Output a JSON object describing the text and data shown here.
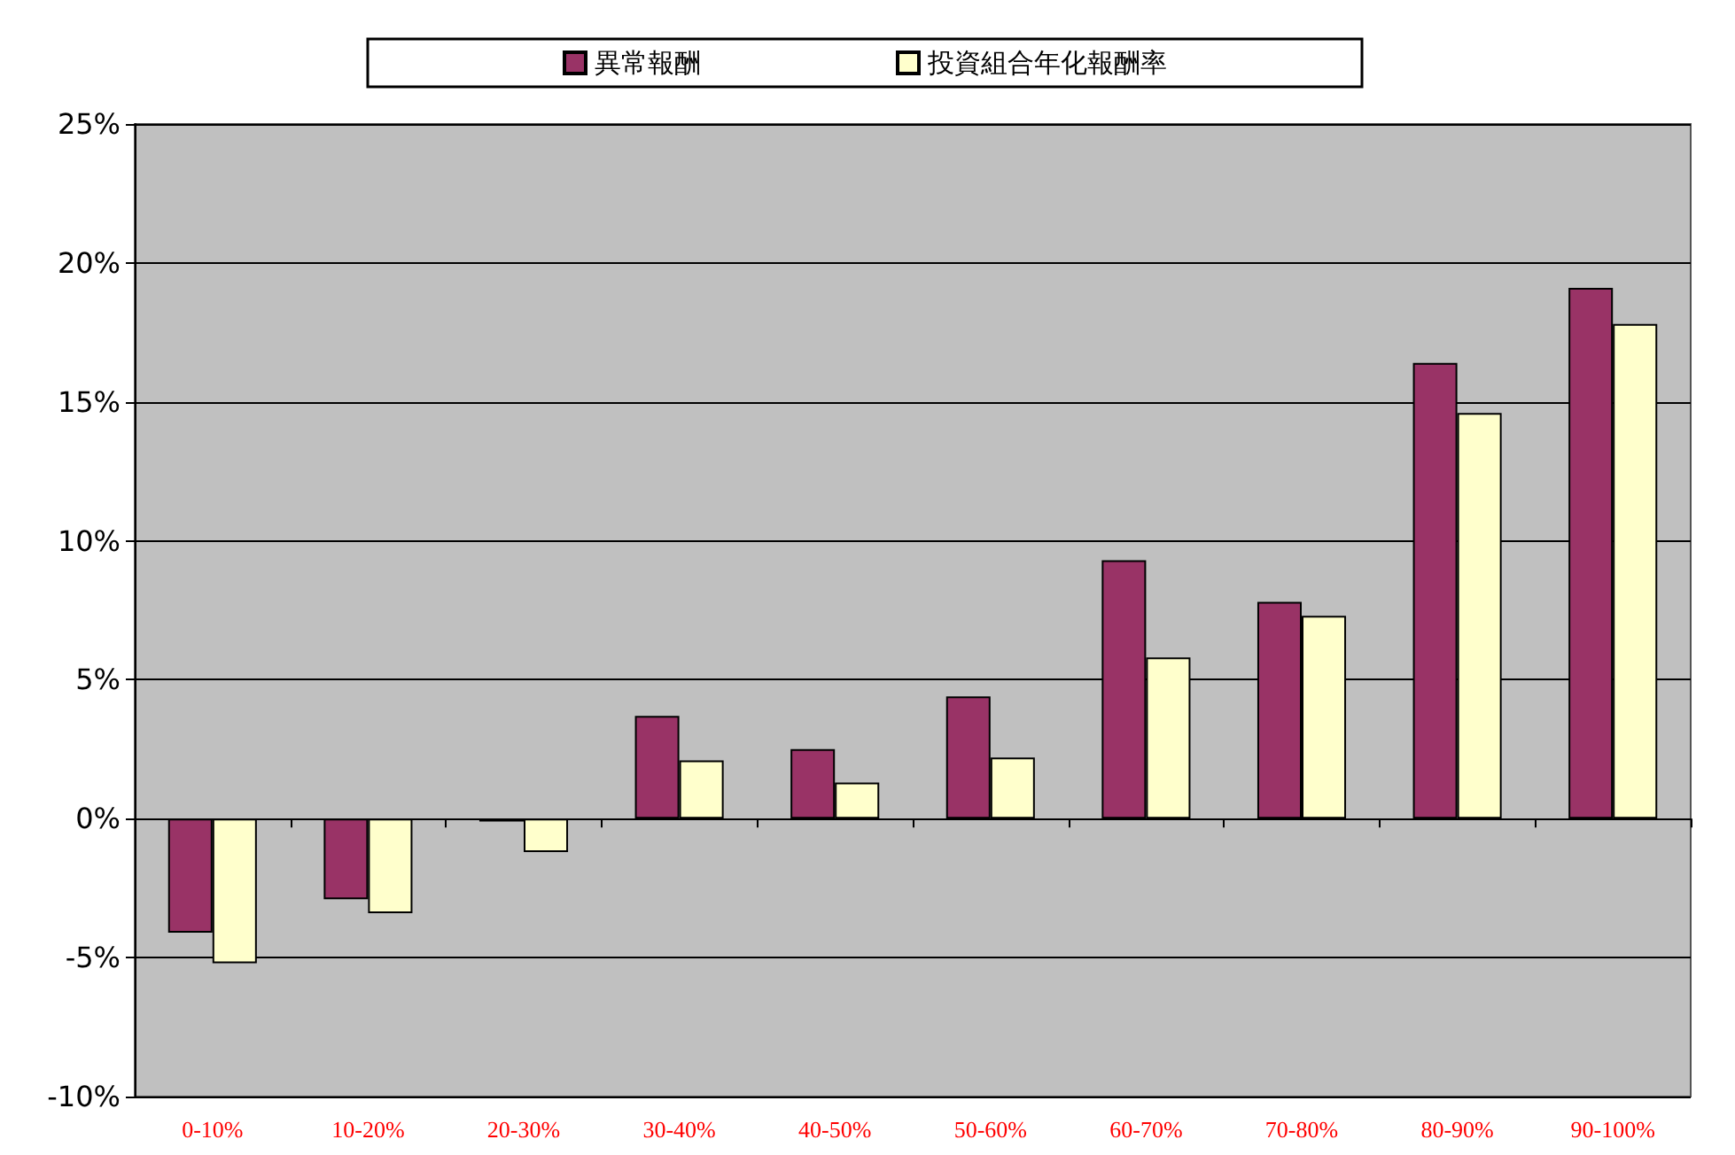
{
  "chart_data": {
    "type": "bar",
    "categories": [
      "0-10%",
      "10-20%",
      "20-30%",
      "30-40%",
      "40-50%",
      "50-60%",
      "60-70%",
      "70-80%",
      "80-90%",
      "90-100%"
    ],
    "series": [
      {
        "name": "異常報酬",
        "color": "#993366",
        "values": [
          -4.1,
          -2.9,
          -0.1,
          3.7,
          2.5,
          4.4,
          9.3,
          7.8,
          16.4,
          19.1
        ]
      },
      {
        "name": "投資組合年化報酬率",
        "color": "#ffffcc",
        "values": [
          -5.2,
          -3.4,
          -1.2,
          2.1,
          1.3,
          2.2,
          5.8,
          7.3,
          14.6,
          17.8
        ]
      }
    ],
    "ylim": [
      -10,
      25
    ],
    "yticks": [
      {
        "value": -10,
        "label": "-10%"
      },
      {
        "value": -5,
        "label": "-5%"
      },
      {
        "value": 0,
        "label": "0%"
      },
      {
        "value": 5,
        "label": "5%"
      },
      {
        "value": 10,
        "label": "10%"
      },
      {
        "value": 15,
        "label": "15%"
      },
      {
        "value": 20,
        "label": "20%"
      },
      {
        "value": 25,
        "label": "25%"
      }
    ],
    "grid": "y",
    "legend": "top"
  }
}
